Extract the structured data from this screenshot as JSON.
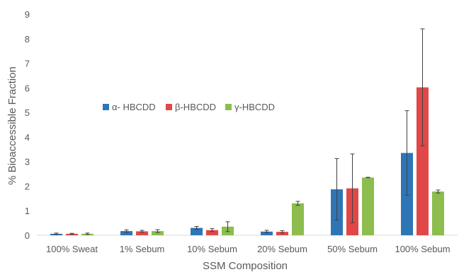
{
  "chart_data": {
    "type": "bar",
    "title": "",
    "xlabel": "SSM Composition",
    "ylabel": "% Bioaccessible Fraction",
    "ylim": [
      0,
      9
    ],
    "yticks": [
      0,
      1,
      2,
      3,
      4,
      5,
      6,
      7,
      8,
      9
    ],
    "grid": false,
    "legend_position": "center-left",
    "categories": [
      "100% Sweat",
      "1% Sebum",
      "10% Sebum",
      "20% Sebum",
      "50% Sebum",
      "100% Sebum"
    ],
    "series": [
      {
        "name": "α- HBCDD",
        "color": "#2e75b6",
        "values": [
          0.06,
          0.17,
          0.3,
          0.15,
          1.87,
          3.35
        ],
        "errors": [
          0.03,
          0.05,
          0.06,
          0.05,
          1.25,
          1.72
        ]
      },
      {
        "name": "β-HBCDD",
        "color": "#e04848",
        "values": [
          0.06,
          0.16,
          0.21,
          0.14,
          1.91,
          6.02
        ],
        "errors": [
          0.02,
          0.04,
          0.06,
          0.05,
          1.4,
          2.38
        ]
      },
      {
        "name": "γ-HBCDD",
        "color": "#8cbd4e",
        "values": [
          0.06,
          0.17,
          0.35,
          1.3,
          2.35,
          1.78
        ],
        "errors": [
          0.03,
          0.06,
          0.2,
          0.08,
          0.01,
          0.06
        ]
      }
    ]
  }
}
